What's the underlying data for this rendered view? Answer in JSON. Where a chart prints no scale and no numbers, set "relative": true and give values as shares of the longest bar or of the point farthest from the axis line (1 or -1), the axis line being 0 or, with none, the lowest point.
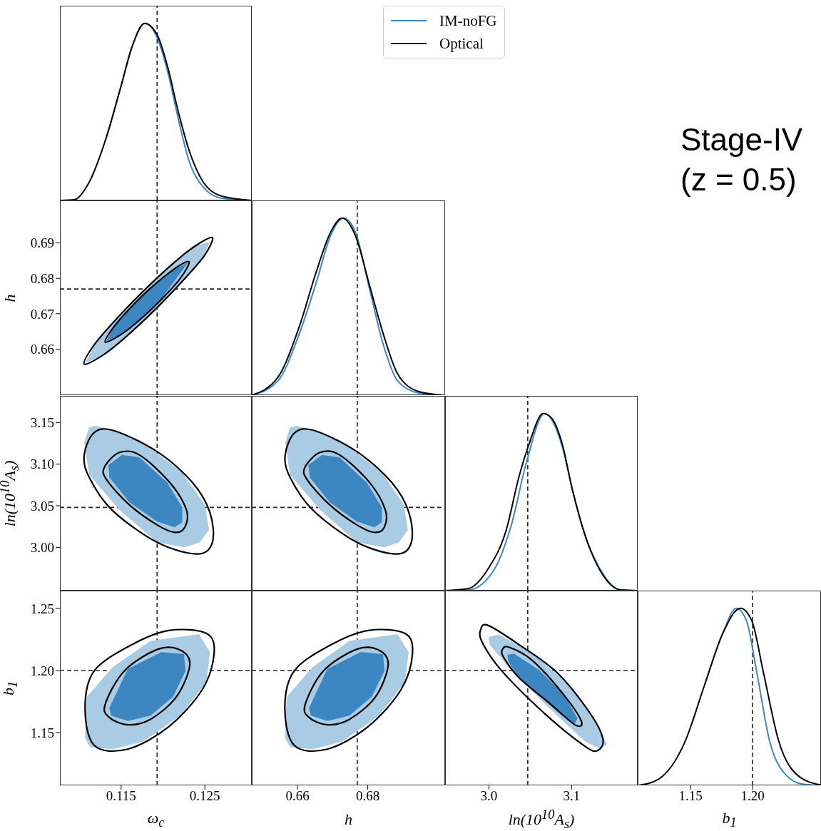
{
  "chart_data": [
    {
      "type": "line",
      "relative": true,
      "xlim": [
        0.1077,
        0.1306
      ],
      "xticks": [
        0.115,
        0.125
      ],
      "tick_labels": false,
      "annotations": [
        "Stage-IV",
        "(z = 0.5)"
      ],
      "legend": "top right",
      "ref_lines": [
        {
          "axis": "x",
          "value": 0.1193,
          "line_style": "dashed"
        }
      ],
      "series": [
        {
          "type": "line",
          "name": "IM-noFG",
          "color": "#3a88c4",
          "x": [
            0.1133,
            0.115,
            0.1163,
            0.1179,
            0.1193,
            0.1206,
            0.1218,
            0.1231,
            0.1248,
            0.127,
            0.1306
          ],
          "values": [
            0.365,
            0.647,
            0.867,
            1,
            0.92,
            0.72,
            0.466,
            0.225,
            0.076,
            0.012,
            0
          ]
        },
        {
          "type": "line",
          "name": "Optical",
          "color": "#000000",
          "x": [
            0.1077,
            0.1094,
            0.1112,
            0.1133,
            0.115,
            0.1163,
            0.1178,
            0.1193,
            0.1206,
            0.1218,
            0.1231,
            0.1248,
            0.127,
            0.1306
          ],
          "values": [
            0,
            0.004,
            0.104,
            0.365,
            0.647,
            0.867,
            1,
            0.936,
            0.747,
            0.506,
            0.285,
            0.104,
            0.024,
            0
          ]
        }
      ]
    },
    {
      "type": "line",
      "xlim": [
        0.1077,
        0.1306
      ],
      "xticks": [
        0.115,
        0.125
      ],
      "ylim": [
        0.647,
        0.702
      ],
      "yticks": [
        0.66,
        0.67,
        0.68,
        0.69
      ],
      "tick_labels": "y",
      "ylabel": "h",
      "ref_lines": [
        {
          "axis": "x",
          "value": 0.1193,
          "line_style": "dashed"
        },
        {
          "axis": "y",
          "value": 0.677,
          "line_style": "dashed"
        }
      ],
      "series": [
        {
          "type": "area",
          "color": "#a9cbe3",
          "x": [
            0.1107,
            0.1127,
            0.1153,
            0.1192,
            0.1229,
            0.1249,
            0.1256,
            0.1238,
            0.1213,
            0.1174,
            0.1137,
            0.1117
          ],
          "values": [
            0.656,
            0.6581,
            0.6629,
            0.6715,
            0.6807,
            0.6866,
            0.6903,
            0.6891,
            0.6843,
            0.6757,
            0.6665,
            0.6606
          ]
        },
        {
          "type": "area",
          "color": "#3c87c1",
          "x": [
            0.1132,
            0.1151,
            0.1173,
            0.1198,
            0.123,
            0.1212,
            0.1185,
            0.116,
            0.1142
          ],
          "values": [
            0.6622,
            0.6643,
            0.6685,
            0.6741,
            0.6845,
            0.6823,
            0.6771,
            0.6714,
            0.6665
          ]
        }
      ]
    },
    {
      "type": "line",
      "relative": true,
      "xlim": [
        0.647,
        0.702
      ],
      "xticks": [
        0.66,
        0.68
      ],
      "tick_labels": false,
      "ref_lines": [
        {
          "axis": "x",
          "value": 0.677,
          "line_style": "dashed"
        }
      ],
      "series": [
        {
          "type": "line",
          "color": "#3a88c4",
          "x": [
            0.647,
            0.6544,
            0.6604,
            0.6654,
            0.6694,
            0.6731,
            0.6765,
            0.6805,
            0.6845,
            0.6885,
            0.6945,
            0.7014
          ],
          "values": [
            0,
            0.08,
            0.34,
            0.64,
            0.9,
            1,
            0.92,
            0.6,
            0.28,
            0.08,
            0.012,
            0
          ]
        },
        {
          "type": "line",
          "color": "#000000",
          "x": [
            0.647,
            0.6544,
            0.6604,
            0.6654,
            0.6694,
            0.6727,
            0.6765,
            0.6805,
            0.6845,
            0.6885,
            0.6945,
            0.7014
          ],
          "values": [
            0,
            0.1,
            0.38,
            0.7,
            0.92,
            1,
            0.9,
            0.62,
            0.34,
            0.12,
            0.02,
            0
          ]
        }
      ]
    },
    {
      "type": "line",
      "xlim": [
        0.1077,
        0.1306
      ],
      "xticks": [
        0.115,
        0.125
      ],
      "ylim": [
        2.948,
        3.182
      ],
      "yticks": [
        {
          "value": 3,
          "label": "3.00"
        },
        3.05,
        {
          "value": 3.1,
          "label": "3.10"
        },
        3.15
      ],
      "tick_labels": "y",
      "ylabel": "ln(10$^{10}$A$_{s}$)",
      "ref_lines": [
        {
          "axis": "x",
          "value": 0.1193,
          "line_style": "dashed"
        },
        {
          "axis": "y",
          "value": 3.048,
          "line_style": "dashed"
        }
      ],
      "series": [
        {
          "type": "area",
          "color": "#a9cbe3",
          "x": [
            0.1106,
            0.1112,
            0.1121,
            0.1172,
            0.1223,
            0.125,
            0.1255,
            0.1244,
            0.1226,
            0.1193,
            0.1148,
            0.1112
          ],
          "values": [
            3.126,
            3.144,
            3.146,
            3.129,
            3.09,
            3.051,
            3.021,
            3.006,
            3,
            3.006,
            3.045,
            3.087
          ]
        },
        {
          "type": "area",
          "color": "#3c87c1",
          "x": [
            0.1135,
            0.1151,
            0.1172,
            0.1205,
            0.1223,
            0.1223,
            0.1214,
            0.1193,
            0.116,
            0.1136
          ],
          "values": [
            3.099,
            3.111,
            3.108,
            3.078,
            3.048,
            3.03,
            3.024,
            3.031,
            3.054,
            3.084
          ]
        }
      ]
    },
    {
      "type": "line",
      "xlim": [
        0.647,
        0.702
      ],
      "xticks": [
        0.66,
        0.68
      ],
      "ylim": [
        2.948,
        3.182
      ],
      "yticks": [
        3,
        3.05,
        3.1,
        3.15
      ],
      "tick_labels": false,
      "ref_lines": [
        {
          "axis": "x",
          "value": 0.677,
          "line_style": "dashed"
        },
        {
          "axis": "y",
          "value": 3.048,
          "line_style": "dashed"
        }
      ],
      "series": [
        {
          "type": "area",
          "color": "#a9cbe3",
          "x": [
            0.6565,
            0.6579,
            0.66,
            0.672,
            0.684,
            0.6903,
            0.6914,
            0.6889,
            0.6847,
            0.6769,
            0.6664,
            0.6579
          ],
          "values": [
            3.126,
            3.144,
            3.146,
            3.129,
            3.09,
            3.051,
            3.021,
            3.006,
            3,
            3.006,
            3.045,
            3.087
          ]
        },
        {
          "type": "area",
          "color": "#3c87c1",
          "x": [
            0.6631,
            0.667,
            0.672,
            0.6797,
            0.684,
            0.684,
            0.6819,
            0.6769,
            0.6692,
            0.6635
          ],
          "values": [
            3.099,
            3.111,
            3.108,
            3.078,
            3.048,
            3.03,
            3.024,
            3.031,
            3.054,
            3.084
          ]
        }
      ]
    },
    {
      "type": "line",
      "relative": true,
      "xlim": [
        2.947,
        3.18
      ],
      "xticks": [
        3,
        3.1
      ],
      "tick_labels": false,
      "ref_lines": [
        {
          "axis": "x",
          "value": 3.047,
          "line_style": "dashed"
        }
      ],
      "series": [
        {
          "type": "line",
          "color": "#3a88c4",
          "x": [
            2.947,
            2.9747,
            3.0055,
            3.0271,
            3.0456,
            3.0672,
            3.0887,
            3.101,
            3.1164,
            3.1348,
            3.1595,
            3.18
          ],
          "values": [
            0,
            0.003,
            0.112,
            0.37,
            0.728,
            1,
            0.814,
            0.57,
            0.312,
            0.119,
            0.004,
            0
          ]
        },
        {
          "type": "line",
          "color": "#000000",
          "x": [
            2.947,
            2.9747,
            2.9994,
            3.0209,
            3.0363,
            3.0486,
            3.0656,
            3.0764,
            3.0887,
            3.101,
            3.1164,
            3.1348,
            3.1595,
            3.18
          ],
          "values": [
            0,
            0.011,
            0.126,
            0.341,
            0.642,
            0.828,
            1,
            0.971,
            0.828,
            0.57,
            0.312,
            0.112,
            0.004,
            0
          ]
        }
      ]
    },
    {
      "type": "line",
      "xlim": [
        0.1077,
        0.1306
      ],
      "xticks": [
        0.115,
        0.125
      ],
      "ylim": [
        1.1075,
        1.2644
      ],
      "yticks": [
        1.15,
        {
          "value": 1.2,
          "label": "1.20"
        },
        1.25
      ],
      "xlabel": "ω$_{c}$",
      "ylabel": "b$_{1}$",
      "ref_lines": [
        {
          "axis": "x",
          "value": 0.1193,
          "line_style": "dashed"
        },
        {
          "axis": "y",
          "value": 1.2,
          "line_style": "dashed"
        }
      ],
      "series": [
        {
          "type": "area",
          "color": "#a9cbe3",
          "x": [
            0.1107,
            0.1109,
            0.114,
            0.1185,
            0.1243,
            0.1256,
            0.1252,
            0.1221,
            0.1176,
            0.114,
            0.1113
          ],
          "values": [
            1.1457,
            1.1788,
            1.2028,
            1.2239,
            1.2293,
            1.2149,
            1.1908,
            1.1637,
            1.1427,
            1.1367,
            1.1382
          ]
        },
        {
          "type": "area",
          "color": "#3c87c1",
          "x": [
            0.1136,
            0.1158,
            0.1198,
            0.1225,
            0.1227,
            0.1212,
            0.1185,
            0.1158,
            0.1138
          ],
          "values": [
            1.1698,
            1.2013,
            1.2149,
            1.2133,
            1.1998,
            1.1788,
            1.1637,
            1.1593,
            1.1637
          ]
        }
      ]
    },
    {
      "type": "line",
      "xlim": [
        0.647,
        0.702
      ],
      "xticks": [
        0.66,
        0.68
      ],
      "ylim": [
        1.1075,
        1.2644
      ],
      "yticks": [
        1.15,
        1.2,
        1.25
      ],
      "tick_labels": "x",
      "xlabel": "h",
      "ref_lines": [
        {
          "axis": "x",
          "value": 0.677,
          "line_style": "dashed"
        },
        {
          "axis": "y",
          "value": 1.2,
          "line_style": "dashed"
        }
      ],
      "series": [
        {
          "type": "area",
          "color": "#a9cbe3",
          "x": [
            0.6564,
            0.6569,
            0.6643,
            0.6748,
            0.6885,
            0.6916,
            0.6906,
            0.6832,
            0.6727,
            0.6643,
            0.658
          ],
          "values": [
            1.1457,
            1.1788,
            1.2028,
            1.2239,
            1.2293,
            1.2149,
            1.1908,
            1.1637,
            1.1427,
            1.1367,
            1.1382
          ]
        },
        {
          "type": "area",
          "color": "#3c87c1",
          "x": [
            0.6633,
            0.6685,
            0.678,
            0.6843,
            0.6848,
            0.6811,
            0.6748,
            0.6685,
            0.6638
          ],
          "values": [
            1.1698,
            1.2013,
            1.2149,
            1.2133,
            1.1998,
            1.1788,
            1.1637,
            1.1593,
            1.1637
          ]
        }
      ]
    },
    {
      "type": "line",
      "xlim": [
        2.947,
        3.18
      ],
      "xticks": [
        {
          "value": 3,
          "label": "3.0"
        },
        3.1
      ],
      "ylim": [
        1.1075,
        1.2644
      ],
      "yticks": [
        1.15,
        1.2,
        1.25
      ],
      "tick_labels": "x",
      "xlabel": "ln(10$^{10}$A$_{s}$)",
      "ref_lines": [
        {
          "axis": "x",
          "value": 3.047,
          "line_style": "dashed"
        },
        {
          "axis": "y",
          "value": 1.2,
          "line_style": "dashed"
        }
      ],
      "series": [
        {
          "type": "area",
          "color": "#a9cbe3",
          "x": [
            2.9994,
            3.0117,
            3.0517,
            3.0979,
            3.1287,
            3.1426,
            3.1348,
            3.1164,
            3.0733,
            3.0241,
            3.0009
          ],
          "values": [
            1.2271,
            1.2291,
            1.2147,
            1.1881,
            1.1594,
            1.1409,
            1.1368,
            1.1429,
            1.1695,
            1.2025,
            1.2209
          ]
        },
        {
          "type": "area",
          "color": "#3c87c1",
          "x": [
            3.0225,
            3.0302,
            3.0609,
            3.0917,
            3.1072,
            3.1041,
            3.0887,
            3.0609,
            3.0333,
            3.0234
          ],
          "values": [
            1.2127,
            1.2137,
            1.2004,
            1.1799,
            1.1614,
            1.1573,
            1.1634,
            1.1799,
            1.1963,
            1.2076
          ]
        }
      ]
    },
    {
      "type": "line",
      "relative": true,
      "xlim": [
        1.1075,
        1.255
      ],
      "xticks": [
        1.15,
        {
          "value": 1.2,
          "label": "1.20"
        }
      ],
      "tick_labels": "x",
      "xlabel": "b$_{1}$",
      "ref_lines": [
        {
          "axis": "x",
          "value": 1.2,
          "line_style": "dashed"
        }
      ],
      "series": [
        {
          "type": "line",
          "color": "#3a88c4",
          "x": [
            1.1614,
            1.1758,
            1.1868,
            1.1951,
            1.2033,
            1.2136,
            1.2259,
            1.2402,
            1.2545
          ],
          "values": [
            0.568,
            0.856,
            1,
            0.928,
            0.64,
            0.252,
            0.065,
            0.007,
            0
          ]
        },
        {
          "type": "line",
          "color": "#000000",
          "x": [
            1.108,
            1.1245,
            1.145,
            1.1614,
            1.1758,
            1.1902,
            1.1994,
            1.2086,
            1.2209,
            1.2374,
            1.2545
          ],
          "values": [
            0,
            0.036,
            0.237,
            0.568,
            0.856,
            1,
            0.928,
            0.64,
            0.252,
            0.05,
            0.003
          ]
        }
      ]
    }
  ]
}
